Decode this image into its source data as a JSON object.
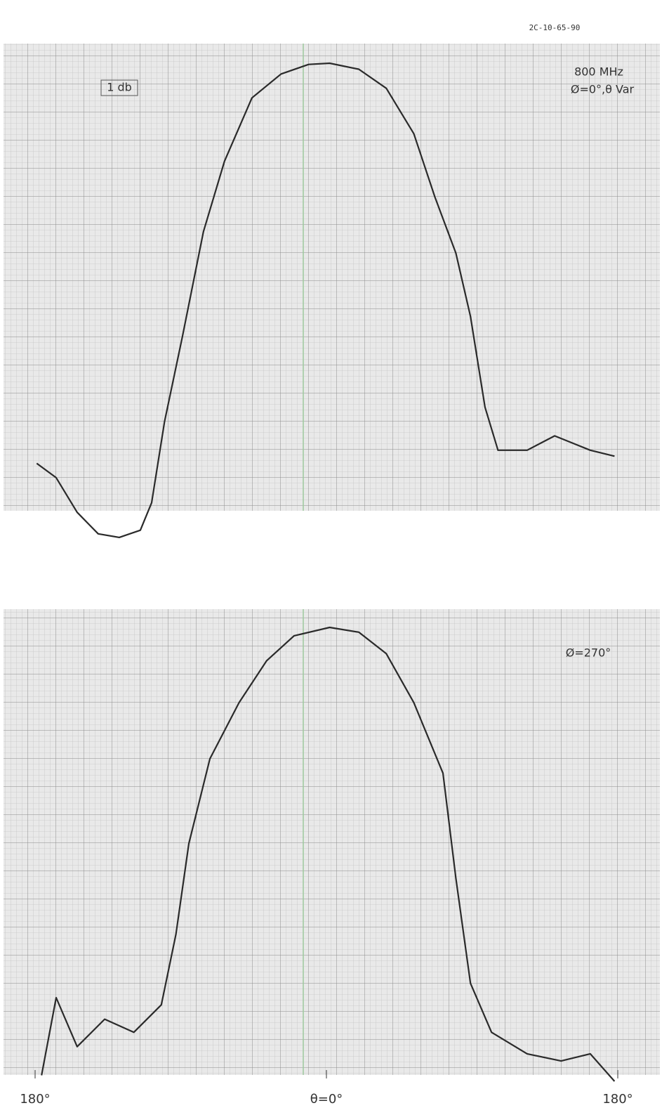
{
  "header": {
    "code": "2C-10-65-90"
  },
  "chart_data": [
    {
      "type": "line",
      "annotations": [
        "1 db",
        "800 MHz",
        "Ø=0°,θ Var"
      ],
      "x": [
        -179,
        -167,
        -154,
        -141,
        -128,
        -115,
        -108,
        -100,
        -89,
        -76,
        -63,
        -46,
        -28,
        -11,
        2,
        20,
        37,
        54,
        67,
        80,
        89,
        98,
        106,
        124,
        141,
        163,
        178
      ],
      "series": [
        {
          "color": "#2a2a2a",
          "values": [
            -33.5,
            -34.7,
            -37.6,
            -39.4,
            -39.7,
            -39.1,
            -36.8,
            -30,
            -22.9,
            -14.1,
            -8.2,
            -2.9,
            -0.9,
            -0.1,
            0,
            -0.5,
            -2.1,
            -5.9,
            -11.2,
            -15.9,
            -21.2,
            -28.8,
            -32.4,
            -32.4,
            -31.2,
            -32.4,
            -32.9
          ]
        }
      ],
      "xlim": [
        -180,
        180
      ],
      "ylim": [
        -40,
        2
      ]
    },
    {
      "type": "line",
      "annotations": [
        "Ø=270°"
      ],
      "x": [
        -176,
        -167,
        -154,
        -137,
        -119,
        -102,
        -93,
        -85,
        -72,
        -54,
        -37,
        -20,
        2,
        20,
        37,
        54,
        72,
        80,
        89,
        102,
        124,
        145,
        163,
        178
      ],
      "series": [
        {
          "color": "#2a2a2a",
          "values": [
            -37.5,
            -31,
            -35.1,
            -32.8,
            -33.9,
            -31.6,
            -25.7,
            -18.1,
            -11,
            -6.3,
            -2.8,
            -0.7,
            0,
            -0.4,
            -2.2,
            -6.3,
            -12.2,
            -21,
            -29.8,
            -33.9,
            -35.7,
            -36.3,
            -35.7,
            -38
          ]
        }
      ],
      "xlim": [
        -180,
        180
      ],
      "ylim": [
        -40,
        2
      ],
      "xticks": [
        {
          "value": -180,
          "label": "180°"
        },
        {
          "value": 0,
          "label": "θ=0°"
        },
        {
          "value": 180,
          "label": "180°"
        }
      ]
    }
  ]
}
